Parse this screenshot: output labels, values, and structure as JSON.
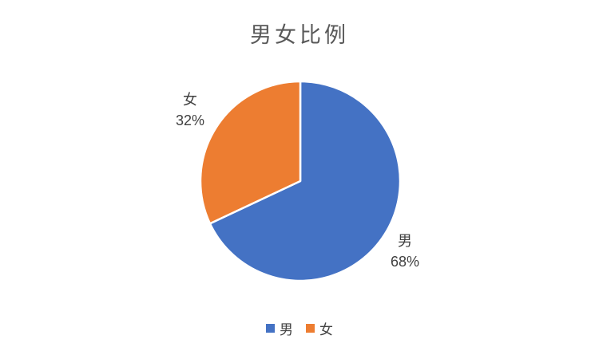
{
  "chart_data": {
    "type": "pie",
    "title": "男女比例",
    "series": [
      {
        "label": "男",
        "value": 68,
        "percent_label": "68%",
        "color": "#4472C4"
      },
      {
        "label": "女",
        "value": 32,
        "percent_label": "32%",
        "color": "#ED7D31"
      }
    ],
    "start_angle_deg": 0,
    "direction": "clockwise",
    "slice_border_color": "#FFFFFF",
    "background_color": "#FFFFFF",
    "title_color": "#595959",
    "label_color": "#404040",
    "data_label_style": "category name + percentage, outside end",
    "legend": {
      "position": "bottom",
      "items": [
        {
          "label": "男",
          "color": "#4472C4"
        },
        {
          "label": "女",
          "color": "#ED7D31"
        }
      ]
    }
  }
}
